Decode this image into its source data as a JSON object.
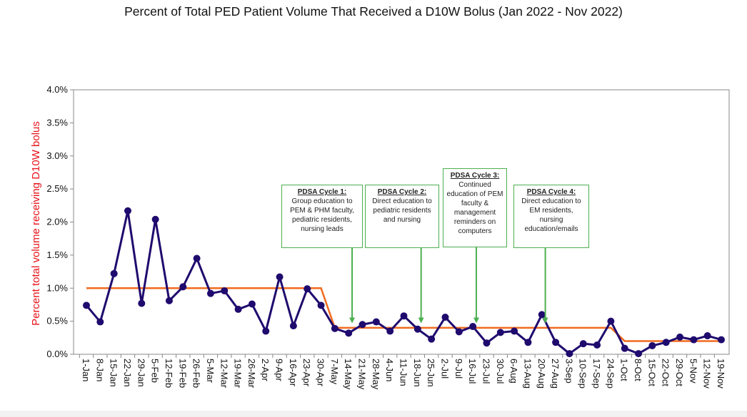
{
  "chart_data": {
    "type": "line",
    "title": "Percent of Total PED Patient Volume That Received a D10W Bolus (Jan 2022 - Nov 2022)",
    "ylabel": "Percent total volume receiving D10W bolus",
    "xlabel": "",
    "ylim": [
      0,
      4.0
    ],
    "yticks": [
      "0.0%",
      "0.5%",
      "1.0%",
      "1.5%",
      "2.0%",
      "2.5%",
      "3.0%",
      "3.5%",
      "4.0%"
    ],
    "categories": [
      "1-Jan",
      "8-Jan",
      "15-Jan",
      "22-Jan",
      "29-Jan",
      "5-Feb",
      "12-Feb",
      "19-Feb",
      "26-Feb",
      "5-Mar",
      "12-Mar",
      "19-Mar",
      "26-Mar",
      "2-Apr",
      "9-Apr",
      "16-Apr",
      "23-Apr",
      "30-Apr",
      "7-May",
      "14-May",
      "21-May",
      "28-May",
      "4-Jun",
      "11-Jun",
      "18-Jun",
      "25-Jun",
      "2-Jul",
      "9-Jul",
      "16-Jul",
      "23-Jul",
      "30-Jul",
      "6-Aug",
      "13-Aug",
      "20-Aug",
      "27-Aug",
      "3-Sep",
      "10-Sep",
      "17-Sep",
      "24-Sep",
      "1-Oct",
      "8-Oct",
      "15-Oct",
      "22-Oct",
      "29-Oct",
      "5-Nov",
      "12-Nov",
      "19-Nov"
    ],
    "series": [
      {
        "values": [
          0.74,
          0.49,
          1.22,
          2.17,
          0.77,
          2.04,
          0.81,
          1.02,
          1.45,
          0.92,
          0.96,
          0.68,
          0.76,
          0.35,
          1.17,
          0.43,
          0.99,
          0.74,
          0.39,
          0.32,
          0.45,
          0.49,
          0.35,
          0.58,
          0.38,
          0.23,
          0.56,
          0.34,
          0.42,
          0.17,
          0.33,
          0.35,
          0.18,
          0.6,
          0.18,
          0.01,
          0.16,
          0.14,
          0.5,
          0.09,
          0.01,
          0.13,
          0.18,
          0.26,
          0.22,
          0.28,
          0.22
        ],
        "color": "#1f0a6e"
      },
      {
        "values": [
          1.0,
          1.0,
          1.0,
          1.0,
          1.0,
          1.0,
          1.0,
          1.0,
          1.0,
          1.0,
          1.0,
          1.0,
          1.0,
          1.0,
          1.0,
          1.0,
          1.0,
          1.0,
          0.4,
          0.4,
          0.4,
          0.4,
          0.4,
          0.4,
          0.4,
          0.4,
          0.4,
          0.4,
          0.4,
          0.4,
          0.4,
          0.4,
          0.4,
          0.4,
          0.4,
          0.4,
          0.4,
          0.4,
          0.4,
          0.2,
          0.2,
          0.2,
          0.2,
          0.2,
          0.2,
          0.2,
          0.2
        ],
        "color": "#f06a1e"
      }
    ],
    "annotations": [
      {
        "title": "PDSA Cycle 1:",
        "body": "Group education to PEM & PHM faculty, pediatric residents, nursing leads",
        "arrow_index": 19
      },
      {
        "title": "PDSA Cycle 2:",
        "body": "Direct education to pediatric residents and nursing",
        "arrow_index": 24
      },
      {
        "title": "PDSA Cycle 3:",
        "body": "Continued education of PEM faculty & management reminders on computers",
        "arrow_index": 28
      },
      {
        "title": "PDSA Cycle 4:",
        "body": "Direct education to EM residents, nursing education/emails",
        "arrow_index": 33
      }
    ],
    "grid": true,
    "colors": {
      "ylabel": "#e8141b",
      "annotation_border": "#4caf50",
      "arrow": "#4caf50"
    }
  }
}
